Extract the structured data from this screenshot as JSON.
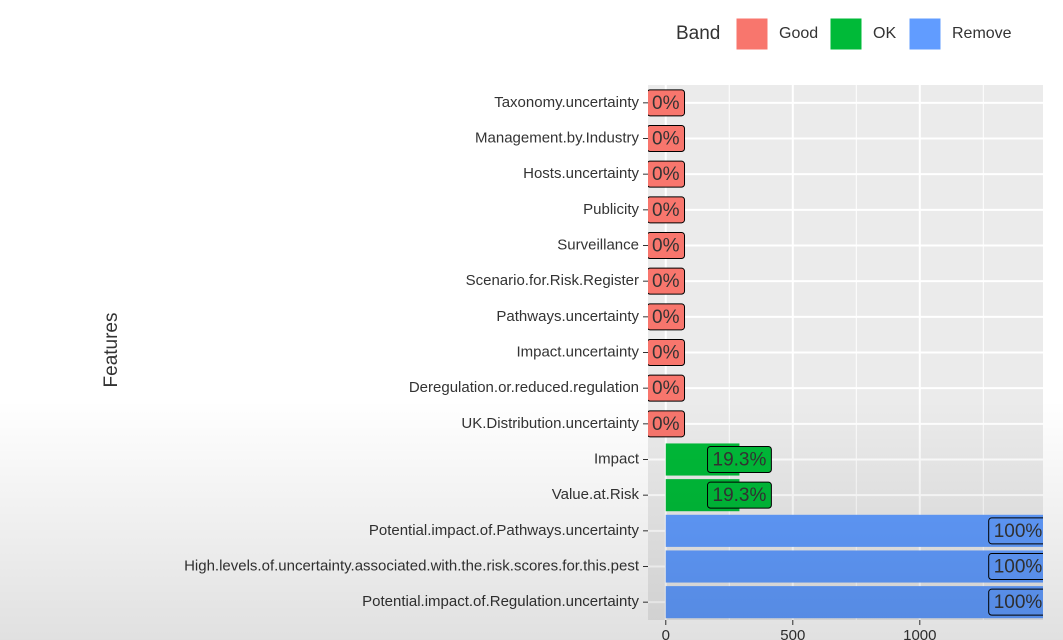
{
  "chart_data": {
    "type": "bar",
    "orientation": "horizontal",
    "y_axis_label": "Features",
    "legend_title": "Band",
    "legend": [
      {
        "name": "Good",
        "color": "#F8766D"
      },
      {
        "name": "OK",
        "color": "#00BA38"
      },
      {
        "name": "Remove",
        "color": "#619CFF"
      }
    ],
    "categories": [
      "Taxonomy.uncertainty",
      "Management.by.Industry",
      "Hosts.uncertainty",
      "Publicity",
      "Surveillance",
      "Scenario.for.Risk.Register",
      "Pathways.uncertainty",
      "Impact.uncertainty",
      "Deregulation.or.reduced.regulation",
      "UK.Distribution.uncertainty",
      "Impact",
      "Value.at.Risk",
      "Potential.impact.of.Pathways.uncertainty",
      "High.levels.of.uncertainty.associated.with.the.risk.scores.for.this.pest",
      "Potential.impact.of.Regulation.uncertainty"
    ],
    "values": [
      0,
      0,
      0,
      0,
      0,
      0,
      0,
      0,
      0,
      0,
      290,
      290,
      1500,
      1500,
      1500
    ],
    "bands": [
      0,
      0,
      0,
      0,
      0,
      0,
      0,
      0,
      0,
      0,
      1,
      1,
      2,
      2,
      2
    ],
    "percent_labels": [
      "0%",
      "0%",
      "0%",
      "0%",
      "0%",
      "0%",
      "0%",
      "0%",
      "0%",
      "0%",
      "19.3%",
      "19.3%",
      "100%",
      "100%",
      "100%"
    ],
    "xlim": [
      -70,
      1485
    ],
    "xticks": [
      0,
      500,
      1000
    ],
    "minor_xticks": [
      250,
      750,
      1250
    ],
    "grid": true
  }
}
